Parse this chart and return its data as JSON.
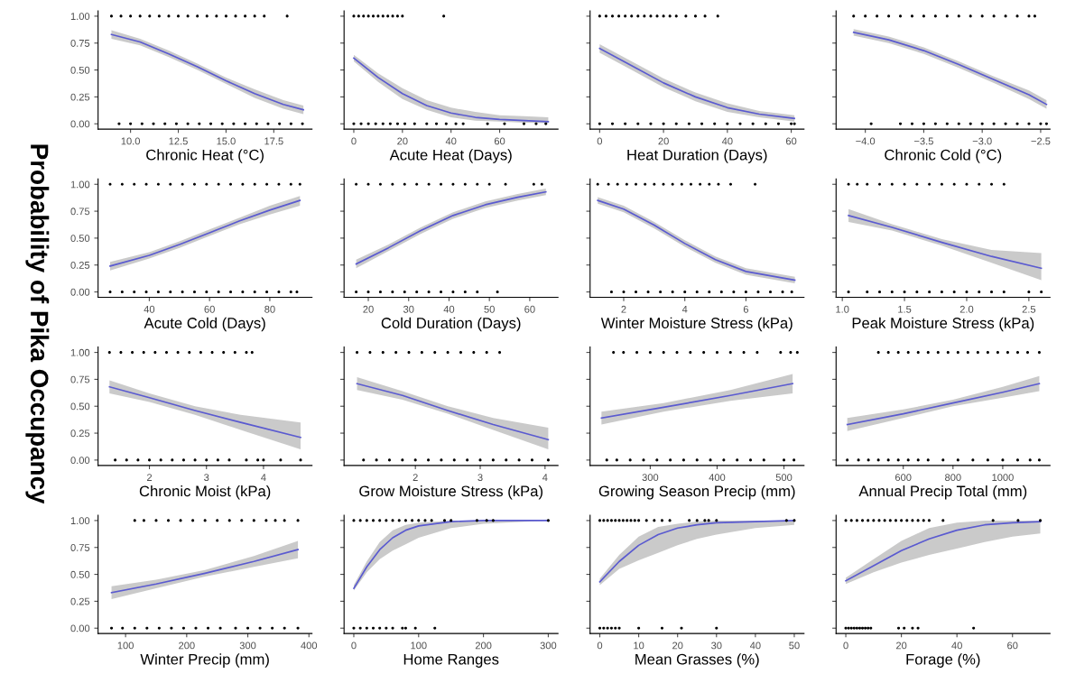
{
  "chart_data": [
    {
      "type": "line",
      "ylabel": "Probability of Pika Occupancy",
      "xlabel": "Chronic Heat (°C)",
      "xlim": [
        8.3,
        19.5
      ],
      "xticks": [
        {
          "value": 10.0,
          "label": "10.0"
        },
        {
          "value": 12.5,
          "label": "12.5"
        },
        {
          "value": 15.0,
          "label": "15.0"
        },
        {
          "value": 17.5,
          "label": "17.5"
        }
      ],
      "ylim": [
        -0.05,
        1.05
      ],
      "yticks": [
        {
          "value": 0,
          "label": "0.00"
        },
        {
          "value": 0.25,
          "label": "0.25"
        },
        {
          "value": 0.5,
          "label": "0.50"
        },
        {
          "value": 0.75,
          "label": "0.75"
        },
        {
          "value": 1,
          "label": "1.00"
        }
      ],
      "series": [
        {
          "color": "#5a5ad0",
          "x": [
            9.0,
            10.5,
            12.0,
            13.5,
            15.0,
            16.5,
            18.0,
            19.05
          ],
          "values": [
            0.83,
            0.76,
            0.65,
            0.53,
            0.4,
            0.28,
            0.18,
            0.13
          ],
          "lower": [
            0.79,
            0.73,
            0.62,
            0.5,
            0.37,
            0.24,
            0.14,
            0.09
          ],
          "upper": [
            0.87,
            0.79,
            0.68,
            0.56,
            0.43,
            0.32,
            0.22,
            0.17
          ]
        },
        {
          "type": "scatter",
          "marker": "circle",
          "color": "#000000",
          "x": [
            9.0,
            9.5,
            10.0,
            10.5,
            11.0,
            11.5,
            12.0,
            12.5,
            13.0,
            13.5,
            14.0,
            14.5,
            15.0,
            15.5,
            16.0,
            16.5,
            17.0,
            18.2
          ],
          "values": [
            1,
            1,
            1,
            1,
            1,
            1,
            1,
            1,
            1,
            1,
            1,
            1,
            1,
            1,
            1,
            1,
            1,
            1
          ]
        },
        {
          "type": "scatter",
          "marker": "circle",
          "color": "#000000",
          "x": [
            9.4,
            10.0,
            10.6,
            11.2,
            11.8,
            12.4,
            13.0,
            13.6,
            14.2,
            14.8,
            15.4,
            16.0,
            16.6,
            17.2,
            17.8,
            18.4,
            19.0
          ],
          "values": [
            0,
            0,
            0,
            0,
            0,
            0,
            0,
            0,
            0,
            0,
            0,
            0,
            0,
            0,
            0,
            0,
            0
          ]
        }
      ]
    },
    {
      "type": "line",
      "xlabel": "Acute Heat (Days)",
      "xlim": [
        -4,
        84
      ],
      "xticks": [
        0,
        20,
        40,
        60
      ],
      "ylim": [
        -0.05,
        1.05
      ],
      "yticks": [
        0,
        0.25,
        0.5,
        0.75,
        1
      ],
      "tick_labels": "x",
      "series": [
        {
          "color": "#5a5ad0",
          "x": [
            0,
            10,
            20,
            30,
            40,
            50,
            60,
            70,
            80
          ],
          "values": [
            0.61,
            0.43,
            0.28,
            0.17,
            0.1,
            0.06,
            0.04,
            0.03,
            0.02
          ],
          "lower": [
            0.58,
            0.39,
            0.23,
            0.13,
            0.06,
            0.03,
            0.02,
            0.01,
            0.005
          ],
          "upper": [
            0.64,
            0.47,
            0.33,
            0.22,
            0.15,
            0.11,
            0.08,
            0.07,
            0.06
          ]
        },
        {
          "type": "scatter",
          "marker": "circle",
          "color": "#000000",
          "x": [
            0,
            2,
            4,
            6,
            8,
            10,
            12,
            14,
            16,
            18,
            20,
            37
          ],
          "values": [
            1,
            1,
            1,
            1,
            1,
            1,
            1,
            1,
            1,
            1,
            1,
            1
          ]
        },
        {
          "type": "scatter",
          "marker": "circle",
          "color": "#000000",
          "x": [
            0,
            3,
            6,
            9,
            12,
            15,
            18,
            21,
            25,
            30,
            34,
            38,
            42,
            45,
            55,
            62,
            70,
            75,
            79
          ],
          "values": [
            0,
            0,
            0,
            0,
            0,
            0,
            0,
            0,
            0,
            0,
            0,
            0,
            0,
            0,
            0,
            0,
            0,
            0,
            0
          ]
        }
      ]
    },
    {
      "type": "line",
      "xlabel": "Heat Duration (Days)",
      "xlim": [
        -3,
        64
      ],
      "xticks": [
        0,
        20,
        40,
        60
      ],
      "ylim": [
        -0.05,
        1.05
      ],
      "yticks": [
        0,
        0.25,
        0.5,
        0.75,
        1
      ],
      "tick_labels": "x",
      "series": [
        {
          "color": "#5a5ad0",
          "x": [
            0,
            10,
            20,
            30,
            40,
            50,
            61
          ],
          "values": [
            0.7,
            0.54,
            0.38,
            0.25,
            0.15,
            0.09,
            0.05
          ],
          "lower": [
            0.66,
            0.5,
            0.34,
            0.21,
            0.11,
            0.06,
            0.02
          ],
          "upper": [
            0.74,
            0.58,
            0.42,
            0.29,
            0.19,
            0.12,
            0.08
          ]
        },
        {
          "type": "scatter",
          "marker": "circle",
          "color": "#000000",
          "x": [
            0,
            2,
            4,
            6,
            8,
            10,
            12,
            14,
            16,
            18,
            20,
            22,
            24,
            27,
            30,
            33,
            37
          ],
          "values": [
            1,
            1,
            1,
            1,
            1,
            1,
            1,
            1,
            1,
            1,
            1,
            1,
            1,
            1,
            1,
            1,
            1
          ]
        },
        {
          "type": "scatter",
          "marker": "circle",
          "color": "#000000",
          "x": [
            0,
            4,
            8,
            12,
            16,
            20,
            24,
            28,
            32,
            36,
            40,
            44,
            48,
            52,
            56,
            60,
            61
          ],
          "values": [
            0,
            0,
            0,
            0,
            0,
            0,
            0,
            0,
            0,
            0,
            0,
            0,
            0,
            0,
            0,
            0,
            0
          ]
        }
      ]
    },
    {
      "type": "line",
      "xlabel": "Chronic Cold (°C)",
      "xlim": [
        -4.25,
        -2.42
      ],
      "xticks": [
        {
          "value": -4.0,
          "label": "−4.0"
        },
        {
          "value": -3.5,
          "label": "−3.5"
        },
        {
          "value": -3.0,
          "label": "−3.0"
        },
        {
          "value": -2.5,
          "label": "−2.5"
        }
      ],
      "ylim": [
        -0.05,
        1.05
      ],
      "yticks": [
        0,
        0.25,
        0.5,
        0.75,
        1
      ],
      "tick_labels": "x",
      "series": [
        {
          "color": "#5a5ad0",
          "x": [
            -4.1,
            -3.8,
            -3.5,
            -3.2,
            -2.9,
            -2.6,
            -2.45
          ],
          "values": [
            0.85,
            0.78,
            0.68,
            0.55,
            0.41,
            0.27,
            0.18
          ],
          "lower": [
            0.82,
            0.75,
            0.65,
            0.52,
            0.38,
            0.23,
            0.14
          ],
          "upper": [
            0.88,
            0.81,
            0.71,
            0.58,
            0.44,
            0.31,
            0.22
          ]
        },
        {
          "type": "scatter",
          "marker": "circle",
          "color": "#000000",
          "x": [
            -4.1,
            -4.0,
            -3.9,
            -3.8,
            -3.7,
            -3.6,
            -3.5,
            -3.4,
            -3.3,
            -3.2,
            -3.1,
            -3.0,
            -2.9,
            -2.8,
            -2.7,
            -2.6,
            -2.55
          ],
          "values": [
            1,
            1,
            1,
            1,
            1,
            1,
            1,
            1,
            1,
            1,
            1,
            1,
            1,
            1,
            1,
            1,
            1
          ]
        },
        {
          "type": "scatter",
          "marker": "circle",
          "color": "#000000",
          "x": [
            -3.95,
            -3.7,
            -3.6,
            -3.5,
            -3.4,
            -3.3,
            -3.2,
            -3.1,
            -3.0,
            -2.9,
            -2.8,
            -2.7,
            -2.6,
            -2.5,
            -2.45
          ],
          "values": [
            0,
            0,
            0,
            0,
            0,
            0,
            0,
            0,
            0,
            0,
            0,
            0,
            0,
            0,
            0
          ]
        }
      ]
    },
    {
      "type": "line",
      "xlabel": "Acute Cold (Days)",
      "xlim": [
        23,
        94
      ],
      "xticks": [
        40,
        60,
        80
      ],
      "ylim": [
        -0.05,
        1.05
      ],
      "yticks": [
        {
          "value": 0,
          "label": "0.00"
        },
        {
          "value": 0.25,
          "label": "0.25"
        },
        {
          "value": 0.5,
          "label": "0.50"
        },
        {
          "value": 0.75,
          "label": "0.75"
        },
        {
          "value": 1,
          "label": "1.00"
        }
      ],
      "series": [
        {
          "color": "#5a5ad0",
          "x": [
            27,
            40,
            50,
            60,
            70,
            80,
            90
          ],
          "values": [
            0.24,
            0.34,
            0.44,
            0.55,
            0.66,
            0.76,
            0.85
          ],
          "lower": [
            0.2,
            0.31,
            0.41,
            0.52,
            0.63,
            0.72,
            0.8
          ],
          "upper": [
            0.28,
            0.37,
            0.47,
            0.58,
            0.69,
            0.8,
            0.89
          ]
        },
        {
          "type": "scatter",
          "marker": "circle",
          "color": "#000000",
          "x": [
            27,
            31,
            35,
            39,
            43,
            47,
            51,
            55,
            59,
            63,
            67,
            71,
            75,
            79,
            83,
            87,
            90
          ],
          "values": [
            1,
            1,
            1,
            1,
            1,
            1,
            1,
            1,
            1,
            1,
            1,
            1,
            1,
            1,
            1,
            1,
            1
          ]
        },
        {
          "type": "scatter",
          "marker": "circle",
          "color": "#000000",
          "x": [
            27,
            31,
            35,
            39,
            43,
            47,
            51,
            55,
            59,
            63,
            67,
            71,
            75,
            79,
            83,
            87,
            89
          ],
          "values": [
            0,
            0,
            0,
            0,
            0,
            0,
            0,
            0,
            0,
            0,
            0,
            0,
            0,
            0,
            0,
            0,
            0
          ]
        }
      ]
    },
    {
      "type": "line",
      "xlabel": "Cold Duration (Days)",
      "xlim": [
        14,
        67
      ],
      "xticks": [
        20,
        30,
        40,
        50,
        60
      ],
      "ylim": [
        -0.05,
        1.05
      ],
      "yticks": [
        0,
        0.25,
        0.5,
        0.75,
        1
      ],
      "tick_labels": "x",
      "series": [
        {
          "color": "#5a5ad0",
          "x": [
            17,
            25,
            33,
            41,
            49,
            57,
            64
          ],
          "values": [
            0.26,
            0.41,
            0.57,
            0.71,
            0.81,
            0.88,
            0.93
          ],
          "lower": [
            0.22,
            0.38,
            0.54,
            0.68,
            0.78,
            0.85,
            0.9
          ],
          "upper": [
            0.3,
            0.44,
            0.6,
            0.74,
            0.84,
            0.91,
            0.96
          ]
        },
        {
          "type": "scatter",
          "marker": "circle",
          "color": "#000000",
          "x": [
            17,
            20,
            23,
            26,
            29,
            32,
            35,
            38,
            41,
            44,
            47,
            50,
            54,
            61,
            63
          ],
          "values": [
            1,
            1,
            1,
            1,
            1,
            1,
            1,
            1,
            1,
            1,
            1,
            1,
            1,
            1,
            1
          ]
        },
        {
          "type": "scatter",
          "marker": "circle",
          "color": "#000000",
          "x": [
            17,
            20,
            23,
            26,
            29,
            32,
            35,
            38,
            41,
            44,
            47,
            52
          ],
          "values": [
            0,
            0,
            0,
            0,
            0,
            0,
            0,
            0,
            0,
            0,
            0,
            0
          ]
        }
      ]
    },
    {
      "type": "line",
      "xlabel": "Winter Moisture Stress (kPa)",
      "xlim": [
        0.9,
        7.9
      ],
      "xticks": [
        2,
        4,
        6
      ],
      "ylim": [
        -0.05,
        1.05
      ],
      "yticks": [
        0,
        0.25,
        0.5,
        0.75,
        1
      ],
      "tick_labels": "x",
      "series": [
        {
          "color": "#5a5ad0",
          "x": [
            1.15,
            2,
            3,
            4,
            5,
            6,
            7.6
          ],
          "values": [
            0.85,
            0.77,
            0.62,
            0.45,
            0.3,
            0.19,
            0.11
          ],
          "lower": [
            0.82,
            0.74,
            0.59,
            0.42,
            0.27,
            0.16,
            0.08
          ],
          "upper": [
            0.88,
            0.8,
            0.65,
            0.48,
            0.33,
            0.22,
            0.14
          ]
        },
        {
          "type": "scatter",
          "marker": "circle",
          "color": "#000000",
          "x": [
            1.15,
            1.5,
            1.8,
            2.1,
            2.4,
            2.7,
            3.0,
            3.3,
            3.6,
            3.9,
            4.2,
            4.5,
            4.8,
            5.1,
            5.5,
            6.3
          ],
          "values": [
            1,
            1,
            1,
            1,
            1,
            1,
            1,
            1,
            1,
            1,
            1,
            1,
            1,
            1,
            1,
            1
          ]
        },
        {
          "type": "scatter",
          "marker": "circle",
          "color": "#000000",
          "x": [
            1.6,
            2.0,
            2.4,
            2.8,
            3.2,
            3.6,
            4.0,
            4.4,
            4.8,
            5.2,
            5.6,
            6.0,
            6.4,
            6.8,
            7.2,
            7.5
          ],
          "values": [
            0,
            0,
            0,
            0,
            0,
            0,
            0,
            0,
            0,
            0,
            0,
            0,
            0,
            0,
            0,
            0
          ]
        }
      ]
    },
    {
      "type": "line",
      "xlabel": "Peak Moisture Stress (kPa)",
      "xlim": [
        0.95,
        2.67
      ],
      "xticks": [
        {
          "value": 1.0,
          "label": "1.0"
        },
        {
          "value": 1.5,
          "label": "1.5"
        },
        {
          "value": 2.0,
          "label": "2.0"
        },
        {
          "value": 2.5,
          "label": "2.5"
        }
      ],
      "ylim": [
        -0.05,
        1.05
      ],
      "yticks": [
        0,
        0.25,
        0.5,
        0.75,
        1
      ],
      "tick_labels": "x",
      "series": [
        {
          "color": "#5a5ad0",
          "x": [
            1.05,
            1.4,
            1.8,
            2.2,
            2.6
          ],
          "values": [
            0.71,
            0.6,
            0.46,
            0.33,
            0.22
          ],
          "lower": [
            0.65,
            0.57,
            0.43,
            0.27,
            0.11
          ],
          "upper": [
            0.77,
            0.63,
            0.49,
            0.39,
            0.36
          ]
        },
        {
          "type": "scatter",
          "marker": "circle",
          "color": "#000000",
          "x": [
            1.05,
            1.12,
            1.2,
            1.3,
            1.4,
            1.5,
            1.6,
            1.7,
            1.8,
            1.9,
            2.0,
            2.1,
            2.2,
            2.3
          ],
          "values": [
            1,
            1,
            1,
            1,
            1,
            1,
            1,
            1,
            1,
            1,
            1,
            1,
            1,
            1
          ]
        },
        {
          "type": "scatter",
          "marker": "circle",
          "color": "#000000",
          "x": [
            1.05,
            1.2,
            1.3,
            1.4,
            1.5,
            1.6,
            1.7,
            1.8,
            1.9,
            2.0,
            2.1,
            2.2,
            2.3,
            2.5,
            2.6
          ],
          "values": [
            0,
            0,
            0,
            0,
            0,
            0,
            0,
            0,
            0,
            0,
            0,
            0,
            0,
            0,
            0
          ]
        }
      ]
    },
    {
      "type": "line",
      "xlabel": "Chronic Moist (kPa)",
      "xlim": [
        1.1,
        4.85
      ],
      "xticks": [
        2,
        3,
        4
      ],
      "ylim": [
        -0.05,
        1.05
      ],
      "yticks": [
        {
          "value": 0,
          "label": "0.00"
        },
        {
          "value": 0.25,
          "label": "0.25"
        },
        {
          "value": 0.5,
          "label": "0.50"
        },
        {
          "value": 0.75,
          "label": "0.75"
        },
        {
          "value": 1,
          "label": "1.00"
        }
      ],
      "series": [
        {
          "color": "#5a5ad0",
          "x": [
            1.3,
            2,
            2.8,
            3.6,
            4.65
          ],
          "values": [
            0.68,
            0.58,
            0.46,
            0.35,
            0.21
          ],
          "lower": [
            0.62,
            0.54,
            0.42,
            0.28,
            0.1
          ],
          "upper": [
            0.74,
            0.62,
            0.5,
            0.42,
            0.35
          ]
        },
        {
          "type": "scatter",
          "marker": "circle",
          "color": "#000000",
          "x": [
            1.3,
            1.5,
            1.7,
            1.9,
            2.1,
            2.3,
            2.5,
            2.7,
            2.9,
            3.1,
            3.3,
            3.5,
            3.7,
            3.8
          ],
          "values": [
            1,
            1,
            1,
            1,
            1,
            1,
            1,
            1,
            1,
            1,
            1,
            1,
            1,
            1
          ]
        },
        {
          "type": "scatter",
          "marker": "circle",
          "color": "#000000",
          "x": [
            1.4,
            1.6,
            1.8,
            2.0,
            2.2,
            2.4,
            2.6,
            2.8,
            3.0,
            3.2,
            3.4,
            3.7,
            3.9,
            4.0,
            4.3,
            4.65
          ],
          "values": [
            0,
            0,
            0,
            0,
            0,
            0,
            0,
            0,
            0,
            0,
            0,
            0,
            0,
            0,
            0,
            0
          ]
        }
      ]
    },
    {
      "type": "line",
      "xlabel": "Grow Moisture Stress (kPa)",
      "xlim": [
        0.9,
        4.2
      ],
      "xticks": [
        2,
        3,
        4
      ],
      "ylim": [
        -0.05,
        1.05
      ],
      "yticks": [
        0,
        0.25,
        0.5,
        0.75,
        1
      ],
      "tick_labels": "x",
      "series": [
        {
          "color": "#5a5ad0",
          "x": [
            1.1,
            1.8,
            2.5,
            3.2,
            4.05
          ],
          "values": [
            0.71,
            0.6,
            0.46,
            0.33,
            0.19
          ],
          "lower": [
            0.65,
            0.56,
            0.43,
            0.28,
            0.1
          ],
          "upper": [
            0.77,
            0.64,
            0.5,
            0.39,
            0.3
          ]
        },
        {
          "type": "scatter",
          "marker": "circle",
          "color": "#000000",
          "x": [
            1.1,
            1.3,
            1.5,
            1.7,
            1.9,
            2.1,
            2.3,
            2.5,
            2.7,
            2.9,
            3.1,
            3.3
          ],
          "values": [
            1,
            1,
            1,
            1,
            1,
            1,
            1,
            1,
            1,
            1,
            1,
            1
          ]
        },
        {
          "type": "scatter",
          "marker": "circle",
          "color": "#000000",
          "x": [
            1.2,
            1.4,
            1.6,
            1.8,
            2.0,
            2.2,
            2.4,
            2.6,
            2.8,
            3.0,
            3.2,
            3.4,
            3.6,
            3.8,
            4.05
          ],
          "values": [
            0,
            0,
            0,
            0,
            0,
            0,
            0,
            0,
            0,
            0,
            0,
            0,
            0,
            0,
            0
          ]
        }
      ]
    },
    {
      "type": "line",
      "xlabel": "Growing Season Precip (mm)",
      "xlim": [
        210,
        530
      ],
      "xticks": [
        300,
        400,
        500
      ],
      "ylim": [
        -0.05,
        1.05
      ],
      "yticks": [
        0,
        0.25,
        0.5,
        0.75,
        1
      ],
      "tick_labels": "x",
      "series": [
        {
          "color": "#5a5ad0",
          "x": [
            227,
            320,
            420,
            513
          ],
          "values": [
            0.39,
            0.49,
            0.6,
            0.71
          ],
          "lower": [
            0.33,
            0.45,
            0.55,
            0.62
          ],
          "upper": [
            0.45,
            0.53,
            0.65,
            0.8
          ]
        },
        {
          "type": "scatter",
          "marker": "circle",
          "color": "#000000",
          "x": [
            245,
            260,
            280,
            300,
            320,
            340,
            360,
            380,
            400,
            420,
            440,
            460,
            495,
            510,
            520
          ],
          "values": [
            1,
            1,
            1,
            1,
            1,
            1,
            1,
            1,
            1,
            1,
            1,
            1,
            1,
            1,
            1
          ]
        },
        {
          "type": "scatter",
          "marker": "circle",
          "color": "#000000",
          "x": [
            235,
            250,
            270,
            290,
            310,
            330,
            350,
            370,
            390,
            410,
            430,
            450,
            470,
            500,
            515
          ],
          "values": [
            0,
            0,
            0,
            0,
            0,
            0,
            0,
            0,
            0,
            0,
            0,
            0,
            0,
            0,
            0
          ]
        }
      ]
    },
    {
      "type": "line",
      "xlabel": "Annual Precip Total (mm)",
      "xlim": [
        330,
        1190
      ],
      "xticks": [
        600,
        800,
        1000
      ],
      "ylim": [
        -0.05,
        1.05
      ],
      "yticks": [
        0,
        0.25,
        0.5,
        0.75,
        1
      ],
      "tick_labels": "x",
      "series": [
        {
          "color": "#5a5ad0",
          "x": [
            375,
            600,
            800,
            1000,
            1147
          ],
          "values": [
            0.33,
            0.43,
            0.53,
            0.63,
            0.71
          ],
          "lower": [
            0.27,
            0.39,
            0.5,
            0.58,
            0.64
          ],
          "upper": [
            0.39,
            0.47,
            0.56,
            0.68,
            0.78
          ]
        },
        {
          "type": "scatter",
          "marker": "circle",
          "color": "#000000",
          "x": [
            500,
            540,
            580,
            620,
            660,
            700,
            740,
            780,
            820,
            860,
            900,
            940,
            980,
            1020,
            1060,
            1100,
            1147
          ],
          "values": [
            1,
            1,
            1,
            1,
            1,
            1,
            1,
            1,
            1,
            1,
            1,
            1,
            1,
            1,
            1,
            1,
            1
          ]
        },
        {
          "type": "scatter",
          "marker": "circle",
          "color": "#000000",
          "x": [
            375,
            420,
            460,
            500,
            540,
            580,
            620,
            660,
            700,
            760,
            820,
            880,
            940,
            1000,
            1060,
            1110,
            1147
          ],
          "values": [
            0,
            0,
            0,
            0,
            0,
            0,
            0,
            0,
            0,
            0,
            0,
            0,
            0,
            0,
            0,
            0,
            0
          ]
        }
      ]
    },
    {
      "type": "line",
      "xlabel": "Winter Precip (mm)",
      "xlim": [
        55,
        405
      ],
      "xticks": [
        100,
        200,
        300,
        400
      ],
      "ylim": [
        -0.05,
        1.05
      ],
      "yticks": [
        {
          "value": 0,
          "label": "0.00"
        },
        {
          "value": 0.25,
          "label": "0.25"
        },
        {
          "value": 0.5,
          "label": "0.50"
        },
        {
          "value": 0.75,
          "label": "0.75"
        },
        {
          "value": 1,
          "label": "1.00"
        }
      ],
      "series": [
        {
          "color": "#5a5ad0",
          "x": [
            77,
            150,
            230,
            310,
            382
          ],
          "values": [
            0.33,
            0.41,
            0.51,
            0.62,
            0.73
          ],
          "lower": [
            0.27,
            0.37,
            0.48,
            0.57,
            0.65
          ],
          "upper": [
            0.39,
            0.45,
            0.54,
            0.67,
            0.81
          ]
        },
        {
          "type": "scatter",
          "marker": "circle",
          "color": "#000000",
          "x": [
            115,
            130,
            150,
            170,
            190,
            210,
            230,
            250,
            270,
            290,
            310,
            330,
            345,
            360,
            382
          ],
          "values": [
            1,
            1,
            1,
            1,
            1,
            1,
            1,
            1,
            1,
            1,
            1,
            1,
            1,
            1,
            1
          ]
        },
        {
          "type": "scatter",
          "marker": "circle",
          "color": "#000000",
          "x": [
            77,
            95,
            115,
            135,
            155,
            175,
            195,
            215,
            235,
            255,
            280,
            300,
            320,
            340,
            360,
            382
          ],
          "values": [
            0,
            0,
            0,
            0,
            0,
            0,
            0,
            0,
            0,
            0,
            0,
            0,
            0,
            0,
            0,
            0
          ]
        }
      ]
    },
    {
      "type": "line",
      "xlabel": "Home Ranges",
      "xlim": [
        -15,
        315
      ],
      "xticks": [
        0,
        100,
        200,
        300
      ],
      "ylim": [
        -0.05,
        1.05
      ],
      "yticks": [
        0,
        0.25,
        0.5,
        0.75,
        1
      ],
      "tick_labels": "x",
      "series": [
        {
          "color": "#5a5ad0",
          "x": [
            0,
            20,
            40,
            60,
            80,
            100,
            150,
            200,
            300
          ],
          "values": [
            0.37,
            0.57,
            0.73,
            0.84,
            0.91,
            0.95,
            0.99,
            1.0,
            1.0
          ],
          "lower": [
            0.35,
            0.52,
            0.64,
            0.72,
            0.78,
            0.84,
            0.93,
            0.97,
            1.0
          ],
          "upper": [
            0.4,
            0.62,
            0.8,
            0.91,
            0.96,
            0.98,
            1.0,
            1.0,
            1.0
          ]
        },
        {
          "type": "scatter",
          "marker": "circle",
          "color": "#000000",
          "x": [
            0,
            10,
            20,
            30,
            40,
            50,
            60,
            70,
            80,
            90,
            100,
            110,
            120,
            140,
            150,
            190,
            205,
            215,
            300
          ],
          "values": [
            1,
            1,
            1,
            1,
            1,
            1,
            1,
            1,
            1,
            1,
            1,
            1,
            1,
            1,
            1,
            1,
            1,
            1,
            1
          ]
        },
        {
          "type": "scatter",
          "marker": "circle",
          "color": "#000000",
          "x": [
            0,
            10,
            20,
            30,
            40,
            50,
            60,
            75,
            80,
            95,
            125
          ],
          "values": [
            0,
            0,
            0,
            0,
            0,
            0,
            0,
            0,
            0,
            0,
            0
          ]
        }
      ]
    },
    {
      "type": "line",
      "xlabel": "Mean Grasses (%)",
      "xlim": [
        -2.5,
        52.5
      ],
      "xticks": [
        0,
        10,
        20,
        30,
        40,
        50
      ],
      "ylim": [
        -0.05,
        1.05
      ],
      "yticks": [
        0,
        0.25,
        0.5,
        0.75,
        1
      ],
      "tick_labels": "x",
      "series": [
        {
          "color": "#5a5ad0",
          "x": [
            0,
            5,
            10,
            15,
            20,
            25,
            30,
            40,
            50
          ],
          "values": [
            0.43,
            0.62,
            0.77,
            0.87,
            0.93,
            0.96,
            0.98,
            0.99,
            1.0
          ],
          "lower": [
            0.4,
            0.55,
            0.63,
            0.7,
            0.77,
            0.83,
            0.87,
            0.93,
            0.96
          ],
          "upper": [
            0.46,
            0.68,
            0.85,
            0.94,
            0.97,
            0.99,
            1.0,
            1.0,
            1.0
          ]
        },
        {
          "type": "scatter",
          "marker": "circle",
          "color": "#000000",
          "x": [
            0,
            1,
            2,
            3,
            4,
            5,
            6,
            7,
            8,
            9,
            10,
            12,
            14,
            16,
            18,
            23,
            25,
            27,
            28,
            30,
            48,
            50
          ],
          "values": [
            1,
            1,
            1,
            1,
            1,
            1,
            1,
            1,
            1,
            1,
            1,
            1,
            1,
            1,
            1,
            1,
            1,
            1,
            1,
            1,
            1,
            1
          ]
        },
        {
          "type": "scatter",
          "marker": "circle",
          "color": "#000000",
          "x": [
            0,
            1,
            2,
            3,
            4,
            5,
            10,
            16,
            21,
            30
          ],
          "values": [
            0,
            0,
            0,
            0,
            0,
            0,
            0,
            0,
            0,
            0
          ]
        }
      ]
    },
    {
      "type": "line",
      "xlabel": "Forage (%)",
      "xlim": [
        -3.5,
        73.5
      ],
      "xticks": [
        0,
        20,
        40,
        60
      ],
      "ylim": [
        -0.05,
        1.05
      ],
      "yticks": [
        0,
        0.25,
        0.5,
        0.75,
        1
      ],
      "tick_labels": "x",
      "series": [
        {
          "color": "#5a5ad0",
          "x": [
            0,
            10,
            20,
            30,
            40,
            50,
            60,
            70
          ],
          "values": [
            0.44,
            0.58,
            0.72,
            0.83,
            0.91,
            0.96,
            0.98,
            0.99
          ],
          "lower": [
            0.41,
            0.52,
            0.61,
            0.68,
            0.74,
            0.8,
            0.85,
            0.88
          ],
          "upper": [
            0.47,
            0.64,
            0.81,
            0.93,
            0.98,
            1.0,
            1.0,
            1.0
          ]
        },
        {
          "type": "scatter",
          "marker": "circle",
          "color": "#000000",
          "x": [
            0,
            2,
            4,
            6,
            8,
            10,
            12,
            14,
            16,
            18,
            20,
            22,
            24,
            26,
            28,
            30,
            35,
            53,
            62,
            70
          ],
          "values": [
            1,
            1,
            1,
            1,
            1,
            1,
            1,
            1,
            1,
            1,
            1,
            1,
            1,
            1,
            1,
            1,
            1,
            1,
            1,
            1
          ]
        },
        {
          "type": "scatter",
          "marker": "circle",
          "color": "#000000",
          "x": [
            0,
            1,
            2,
            3,
            4,
            5,
            6,
            7,
            8,
            9,
            19,
            21,
            24,
            26,
            46
          ],
          "values": [
            0,
            0,
            0,
            0,
            0,
            0,
            0,
            0,
            0,
            0,
            0,
            0,
            0,
            0,
            0
          ]
        }
      ]
    }
  ]
}
